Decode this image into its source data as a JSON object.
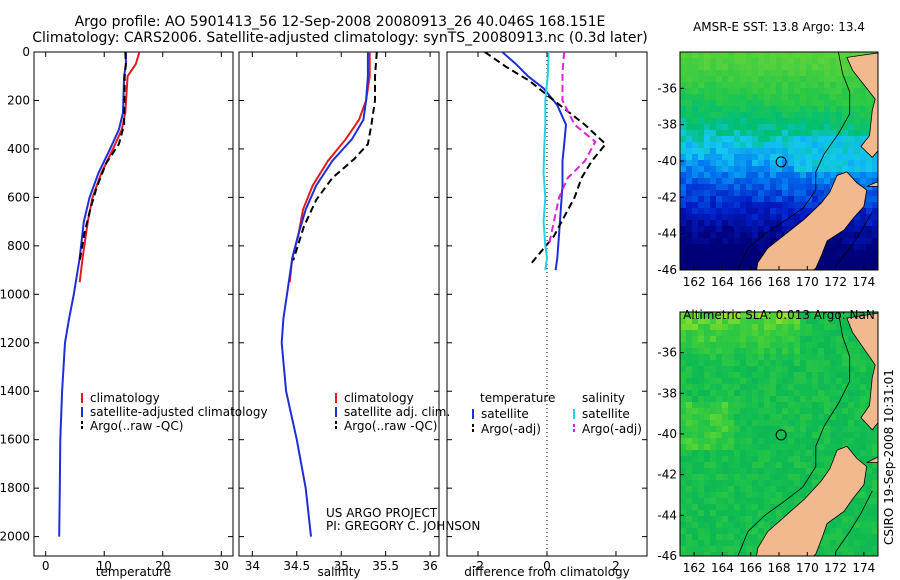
{
  "title": {
    "line1": "Argo profile: AO 5901413_56 12-Sep-2008 20080913_26 40.046S 168.151E",
    "line2": "Climatology: CARS2006. Satellite-adjusted climatology: synTS_20080913.nc (0.3d later)"
  },
  "credits": {
    "project": "US ARGO PROJECT",
    "pi": "PI: GREGORY C. JOHNSON",
    "stamp": "CSIRO 19-Sep-2008 10:31:01"
  },
  "colors": {
    "climatology": "#e41a1c",
    "satellite": "#1f2fd6",
    "argo": "#000000",
    "salinity_satellite": "#22d3e6",
    "salinity_argo": "#e020e0",
    "land": "#f2b98f"
  },
  "chart_data": [
    {
      "type": "line",
      "id": "temperature-profile",
      "xlabel": "temperature",
      "ylabel": "",
      "xlim": [
        -2,
        32
      ],
      "ylim": [
        2080,
        0
      ],
      "xticks": [
        "0",
        "10",
        "20",
        "30"
      ],
      "yticks": [
        "0",
        "200",
        "400",
        "600",
        "800",
        "1000",
        "1200",
        "1400",
        "1600",
        "1800",
        "2000"
      ],
      "legend_position": "bottom-right",
      "series": [
        {
          "name": "climatology",
          "color": "red",
          "x": [
            16.0,
            15.4,
            14.0,
            13.6,
            13.0,
            11.5,
            9.5,
            8.0,
            7.2,
            6.3,
            5.8
          ],
          "y": [
            0,
            50,
            100,
            250,
            320,
            400,
            500,
            600,
            700,
            850,
            950
          ]
        },
        {
          "name": "satellite-adjusted climatology",
          "color": "blue",
          "x": [
            13.7,
            13.7,
            13.4,
            13.2,
            12.5,
            11.0,
            9.0,
            7.5,
            6.5,
            5.8,
            4.8,
            4.0,
            3.3,
            2.8,
            2.5,
            2.4,
            2.3
          ],
          "y": [
            0,
            50,
            100,
            250,
            320,
            400,
            500,
            600,
            700,
            850,
            1000,
            1100,
            1200,
            1400,
            1600,
            1800,
            2000
          ]
        },
        {
          "name": "Argo(..raw -QC)",
          "color": "black",
          "dashed": true,
          "x": [
            13.6,
            13.7,
            13.5,
            13.4,
            12.5,
            10.3,
            8.7,
            7.6,
            6.6,
            5.8
          ],
          "y": [
            0,
            50,
            100,
            300,
            380,
            460,
            560,
            650,
            750,
            860
          ]
        }
      ]
    },
    {
      "type": "line",
      "id": "salinity-profile",
      "xlabel": "salinity",
      "ylabel": "",
      "xlim": [
        33.85,
        36.1
      ],
      "ylim": [
        2080,
        0
      ],
      "xticks": [
        "34",
        "34.5",
        "35",
        "35.5",
        "36"
      ],
      "legend_position": "bottom-right",
      "series": [
        {
          "name": "climatology",
          "color": "red",
          "x": [
            35.32,
            35.32,
            35.28,
            35.2,
            35.05,
            34.85,
            34.68,
            34.57,
            34.52,
            34.45,
            34.42
          ],
          "y": [
            0,
            100,
            200,
            280,
            360,
            450,
            550,
            650,
            750,
            850,
            950
          ]
        },
        {
          "name": "satellite adj. clim.",
          "color": "blue",
          "x": [
            35.3,
            35.3,
            35.28,
            35.25,
            35.12,
            34.9,
            34.72,
            34.6,
            34.52,
            34.45,
            34.39,
            34.35,
            34.33,
            34.38,
            34.5,
            34.6,
            34.66
          ],
          "y": [
            0,
            100,
            200,
            280,
            360,
            450,
            550,
            650,
            750,
            850,
            1000,
            1100,
            1200,
            1400,
            1600,
            1800,
            2000
          ]
        },
        {
          "name": "Argo(..raw -QC)",
          "color": "black",
          "dashed": true,
          "x": [
            35.4,
            35.38,
            35.38,
            35.34,
            35.3,
            35.15,
            34.9,
            34.72,
            34.58,
            34.46
          ],
          "y": [
            0,
            100,
            200,
            300,
            380,
            440,
            520,
            610,
            720,
            860
          ]
        }
      ]
    },
    {
      "type": "line",
      "id": "difference-profile",
      "xlabel": "difference from climatology",
      "ylabel": "",
      "xlim": [
        -2.9,
        2.9
      ],
      "ylim": [
        2080,
        0
      ],
      "xticks": [
        "-2",
        "0",
        "2"
      ],
      "legend_position": "bottom",
      "legend_groups": [
        "temperature",
        "salinity"
      ],
      "series": [
        {
          "name": "satellite",
          "group": "temperature",
          "color": "blue",
          "x": [
            -1.3,
            -0.9,
            -0.55,
            -0.1,
            0.3,
            0.55,
            0.5,
            0.45,
            0.45,
            0.4,
            0.35,
            0.3,
            0.25
          ],
          "y": [
            0,
            50,
            100,
            150,
            220,
            300,
            380,
            450,
            550,
            650,
            750,
            850,
            900
          ]
        },
        {
          "name": "Argo(-adj)",
          "group": "temperature",
          "color": "black",
          "dashed": true,
          "x": [
            -1.8,
            -1.2,
            -0.5,
            0.2,
            1.1,
            1.7,
            1.3,
            1.0,
            0.8,
            0.5,
            0.2,
            -0.5
          ],
          "y": [
            0,
            60,
            120,
            200,
            300,
            380,
            450,
            520,
            600,
            680,
            760,
            880
          ]
        },
        {
          "name": "satellite",
          "group": "salinity",
          "color": "cyan",
          "x": [
            0.05,
            0.02,
            -0.05,
            -0.05,
            -0.08,
            -0.1,
            -0.05,
            -0.1,
            -0.05,
            0.0,
            -0.05
          ],
          "y": [
            0,
            100,
            200,
            300,
            400,
            500,
            600,
            700,
            800,
            850,
            900
          ]
        },
        {
          "name": "Argo(-adj)",
          "group": "salinity",
          "color": "magenta",
          "dashed": true,
          "x": [
            0.5,
            0.45,
            0.45,
            0.8,
            1.4,
            1.1,
            0.6,
            0.35,
            0.2,
            0.05
          ],
          "y": [
            0,
            80,
            200,
            300,
            370,
            450,
            520,
            600,
            700,
            800
          ]
        }
      ]
    },
    {
      "type": "heatmap",
      "id": "sst-map",
      "title": "AMSR-E SST: 13.8 Argo: 13.4",
      "xticks": [
        "162",
        "164",
        "166",
        "168",
        "170",
        "172",
        "174"
      ],
      "yticks": [
        "-36",
        "-38",
        "-40",
        "-42",
        "-44",
        "-46"
      ],
      "xlim": [
        161,
        175
      ],
      "ylim": [
        -46,
        -34
      ],
      "argo_position": {
        "lon": 168.151,
        "lat": -40.046
      }
    },
    {
      "type": "heatmap",
      "id": "sla-map",
      "title": "Altimetric SLA: 0.013 Argo: NaN",
      "xticks": [
        "162",
        "164",
        "166",
        "168",
        "170",
        "172",
        "174"
      ],
      "yticks": [
        "-36",
        "-38",
        "-40",
        "-42",
        "-44",
        "-46"
      ],
      "xlim": [
        161,
        175
      ],
      "ylim": [
        -46,
        -34
      ],
      "argo_position": {
        "lon": 168.151,
        "lat": -40.046
      }
    }
  ]
}
